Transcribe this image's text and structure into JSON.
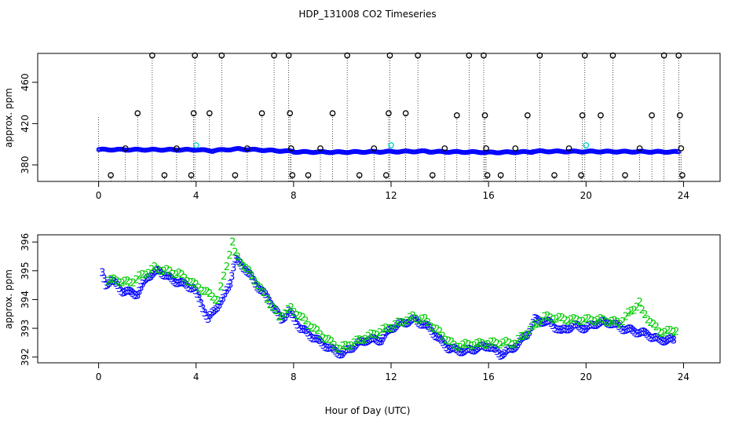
{
  "chart_data": [
    {
      "type": "scatter",
      "title": "HDP_131008  CO2 Timeseries",
      "ylabel": "approx. ppm",
      "xlim": [
        -2.5,
        25.5
      ],
      "ylim": [
        364,
        488
      ],
      "xticks": [
        "0",
        "4",
        "8",
        "12",
        "16",
        "20",
        "24"
      ],
      "yticks": [
        "380",
        "420",
        "460"
      ],
      "baseline_runs": [
        {
          "x": [
            0.0,
            3.9
          ],
          "y": [
            394.8,
            394.6
          ]
        },
        {
          "x": [
            3.9,
            4.7
          ],
          "y": [
            395.0,
            393.5
          ]
        },
        {
          "x": [
            4.7,
            5.8
          ],
          "y": [
            394.0,
            395.5
          ]
        },
        {
          "x": [
            5.8,
            8.0
          ],
          "y": [
            395.3,
            393.0
          ]
        },
        {
          "x": [
            8.0,
            10.0
          ],
          "y": [
            392.6,
            392.3
          ]
        },
        {
          "x": [
            10.0,
            11.9
          ],
          "y": [
            392.4,
            392.8
          ]
        },
        {
          "x": [
            11.9,
            13.5
          ],
          "y": [
            392.8,
            393.2
          ]
        },
        {
          "x": [
            13.5,
            15.9
          ],
          "y": [
            392.8,
            392.3
          ]
        },
        {
          "x": [
            15.9,
            17.8
          ],
          "y": [
            392.0,
            392.6
          ]
        },
        {
          "x": [
            17.8,
            19.9
          ],
          "y": [
            393.2,
            392.9
          ]
        },
        {
          "x": [
            19.9,
            23.8
          ],
          "y": [
            393.0,
            392.6
          ]
        }
      ],
      "outliers": [
        {
          "x": 0.5,
          "y": 370
        },
        {
          "x": 1.1,
          "y": 396
        },
        {
          "x": 1.6,
          "y": 430
        },
        {
          "x": 2.2,
          "y": 486
        },
        {
          "x": 2.7,
          "y": 370
        },
        {
          "x": 3.2,
          "y": 396
        },
        {
          "x": 3.8,
          "y": 370
        },
        {
          "x": 3.9,
          "y": 430
        },
        {
          "x": 3.95,
          "y": 486
        },
        {
          "x": 4.55,
          "y": 430
        },
        {
          "x": 5.05,
          "y": 486
        },
        {
          "x": 5.6,
          "y": 370
        },
        {
          "x": 6.1,
          "y": 396
        },
        {
          "x": 6.7,
          "y": 430
        },
        {
          "x": 7.2,
          "y": 486
        },
        {
          "x": 7.8,
          "y": 486
        },
        {
          "x": 7.85,
          "y": 430
        },
        {
          "x": 7.9,
          "y": 396
        },
        {
          "x": 7.95,
          "y": 370
        },
        {
          "x": 8.6,
          "y": 370
        },
        {
          "x": 9.1,
          "y": 396
        },
        {
          "x": 9.6,
          "y": 430
        },
        {
          "x": 10.2,
          "y": 486
        },
        {
          "x": 10.7,
          "y": 370
        },
        {
          "x": 11.3,
          "y": 396
        },
        {
          "x": 11.8,
          "y": 370
        },
        {
          "x": 11.9,
          "y": 430
        },
        {
          "x": 11.95,
          "y": 486
        },
        {
          "x": 12.6,
          "y": 430
        },
        {
          "x": 13.1,
          "y": 486
        },
        {
          "x": 13.7,
          "y": 370
        },
        {
          "x": 14.2,
          "y": 396
        },
        {
          "x": 14.7,
          "y": 428
        },
        {
          "x": 15.2,
          "y": 486
        },
        {
          "x": 15.8,
          "y": 486
        },
        {
          "x": 15.85,
          "y": 428
        },
        {
          "x": 15.9,
          "y": 396
        },
        {
          "x": 15.95,
          "y": 370
        },
        {
          "x": 16.5,
          "y": 370
        },
        {
          "x": 17.1,
          "y": 396
        },
        {
          "x": 17.6,
          "y": 428
        },
        {
          "x": 18.1,
          "y": 486
        },
        {
          "x": 18.7,
          "y": 370
        },
        {
          "x": 19.3,
          "y": 396
        },
        {
          "x": 19.8,
          "y": 370
        },
        {
          "x": 19.85,
          "y": 428
        },
        {
          "x": 19.95,
          "y": 486
        },
        {
          "x": 20.6,
          "y": 428
        },
        {
          "x": 21.1,
          "y": 486
        },
        {
          "x": 21.6,
          "y": 370
        },
        {
          "x": 22.2,
          "y": 396
        },
        {
          "x": 22.7,
          "y": 428
        },
        {
          "x": 23.2,
          "y": 486
        },
        {
          "x": 23.8,
          "y": 486
        },
        {
          "x": 23.85,
          "y": 428
        },
        {
          "x": 23.9,
          "y": 396
        },
        {
          "x": 23.95,
          "y": 370
        }
      ],
      "highlighted": [
        {
          "x": 4.0,
          "y": 399
        },
        {
          "x": 12.0,
          "y": 399
        },
        {
          "x": 20.0,
          "y": 399
        }
      ],
      "colors": {
        "baseline": "#0000ff",
        "outlier": "#000000",
        "highlight": "#00cccc"
      }
    },
    {
      "type": "scatter",
      "ylabel": "approx. ppm",
      "xlabel": "Hour of Day (UTC)",
      "xlim": [
        -2.5,
        25.5
      ],
      "ylim": [
        391.8,
        396.25
      ],
      "xticks": [
        "0",
        "4",
        "8",
        "12",
        "16",
        "20",
        "24"
      ],
      "yticks": [
        "392",
        "393",
        "394",
        "395",
        "396"
      ],
      "series": [
        {
          "marker": "3",
          "color": "#0000ff",
          "points": [
            [
              0.15,
              394.9
            ],
            [
              0.3,
              394.5
            ],
            [
              0.5,
              394.7
            ],
            [
              1.0,
              394.3
            ],
            [
              1.6,
              394.2
            ],
            [
              2.0,
              394.8
            ],
            [
              2.5,
              395.0
            ],
            [
              3.0,
              394.7
            ],
            [
              3.6,
              394.5
            ],
            [
              3.9,
              394.4
            ],
            [
              4.2,
              393.9
            ],
            [
              4.5,
              393.3
            ],
            [
              4.8,
              393.7
            ],
            [
              5.1,
              394.0
            ],
            [
              5.4,
              394.6
            ],
            [
              5.6,
              395.4
            ],
            [
              6.0,
              395.1
            ],
            [
              6.5,
              394.5
            ],
            [
              7.0,
              394.0
            ],
            [
              7.5,
              393.3
            ],
            [
              7.8,
              393.6
            ],
            [
              8.3,
              393.0
            ],
            [
              8.8,
              392.7
            ],
            [
              9.5,
              392.3
            ],
            [
              10.0,
              392.1
            ],
            [
              10.5,
              392.4
            ],
            [
              11.0,
              392.6
            ],
            [
              11.6,
              392.6
            ],
            [
              12.0,
              393.0
            ],
            [
              12.5,
              393.2
            ],
            [
              13.0,
              393.3
            ],
            [
              13.6,
              393.0
            ],
            [
              14.0,
              392.6
            ],
            [
              14.4,
              392.3
            ],
            [
              15.0,
              392.2
            ],
            [
              15.5,
              392.3
            ],
            [
              16.0,
              392.4
            ],
            [
              16.5,
              392.1
            ],
            [
              17.0,
              392.3
            ],
            [
              17.6,
              392.8
            ],
            [
              17.9,
              393.3
            ],
            [
              18.5,
              393.2
            ],
            [
              19.0,
              392.9
            ],
            [
              19.5,
              393.1
            ],
            [
              20.0,
              393.0
            ],
            [
              20.5,
              393.2
            ],
            [
              21.0,
              393.2
            ],
            [
              21.5,
              393.0
            ],
            [
              22.0,
              392.9
            ],
            [
              22.5,
              392.8
            ],
            [
              23.0,
              392.6
            ],
            [
              23.6,
              392.6
            ]
          ]
        },
        {
          "marker": "2",
          "color": "#00cc00",
          "points": [
            [
              0.4,
              394.7
            ],
            [
              1.3,
              394.6
            ],
            [
              2.3,
              395.1
            ],
            [
              3.3,
              394.9
            ],
            [
              4.0,
              394.5
            ],
            [
              4.9,
              394.0
            ],
            [
              5.5,
              396.0
            ],
            [
              5.6,
              395.6
            ],
            [
              6.4,
              394.7
            ],
            [
              7.4,
              393.4
            ],
            [
              7.9,
              393.7
            ],
            [
              9.1,
              392.8
            ],
            [
              9.9,
              392.3
            ],
            [
              11.3,
              392.8
            ],
            [
              12.9,
              393.4
            ],
            [
              13.4,
              393.3
            ],
            [
              14.6,
              392.4
            ],
            [
              16.1,
              392.5
            ],
            [
              17.1,
              392.5
            ],
            [
              18.3,
              393.4
            ],
            [
              19.5,
              393.3
            ],
            [
              20.6,
              393.3
            ],
            [
              21.4,
              393.2
            ],
            [
              22.2,
              393.9
            ],
            [
              22.3,
              393.6
            ],
            [
              23.0,
              392.9
            ],
            [
              23.7,
              392.9
            ]
          ]
        }
      ]
    }
  ]
}
